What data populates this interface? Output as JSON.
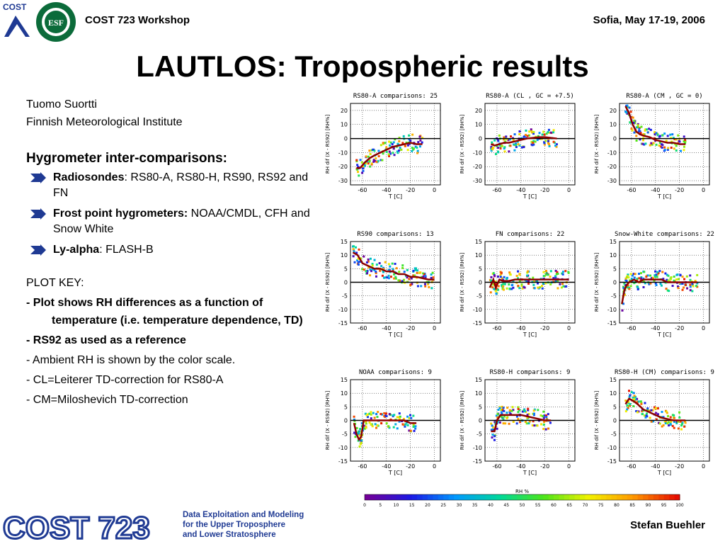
{
  "header": {
    "left": "COST 723 Workshop",
    "right": "Sofia, May 17-19, 2006",
    "logo_left_text": "COST",
    "logo_right_text": "ESF"
  },
  "title": "LAUTLOS: Tropospheric results",
  "left_panel": {
    "author": "Tuomo Suortti",
    "institute": "Finnish Meteorological Institute",
    "section_title": "Hygrometer inter-comparisons:",
    "bullets": [
      {
        "bold": "Radiosondes",
        "rest": ": RS80-A, RS80-H, RS90, RS92 and FN"
      },
      {
        "bold": "Frost point hygrometers:",
        "rest": " NOAA/CMDL, CFH and Snow White"
      },
      {
        "bold": "Ly-alpha",
        "rest": ": FLASH-B"
      }
    ],
    "plot_key_title": "PLOT KEY:",
    "key_lines": [
      {
        "text": "- Plot shows RH differences as a function of temperature (i.e. temperature dependence, TD)",
        "bold": true
      },
      {
        "text": "- RS92 as used as a reference",
        "bold": true
      },
      {
        "text": "- Ambient RH is shown by the color scale.",
        "bold": false
      },
      {
        "text": "- CL=Leiterer TD-correction for RS80-A",
        "bold": false
      },
      {
        "text": "- CM=Miloshevich TD-correction",
        "bold": false
      }
    ]
  },
  "footer": {
    "logo_text": "COST 723",
    "lines": [
      "Data Exploitation and Modeling",
      "for the Upper Troposphere",
      "and Lower Stratosphere"
    ],
    "right": "Stefan Buehler"
  },
  "colors": {
    "title": "#000000",
    "footer_blue": "#1f3a93",
    "mean_curve": "#8b0000",
    "zero_line": "#000000"
  },
  "chart_data": [
    {
      "type": "scatter",
      "title": "RS80-A  comparisons: 25",
      "xlabel": "T [C]",
      "ylabel": "RH dif (X - RS92) [RH%]",
      "xlim": [
        -70,
        5
      ],
      "ylim": [
        -33,
        25
      ],
      "xticks": [
        -60,
        -40,
        -20,
        0
      ],
      "yticks": [
        -30,
        -20,
        -10,
        0,
        10,
        20
      ],
      "mean": {
        "x": [
          -65,
          -62,
          -58,
          -54,
          -50,
          -45,
          -40,
          -35,
          -30,
          -25,
          -20,
          -15,
          -10
        ],
        "y": [
          -21,
          -21,
          -17,
          -14,
          -12,
          -10,
          -8,
          -6,
          -5,
          -4,
          -3,
          -4,
          -4
        ]
      }
    },
    {
      "type": "scatter",
      "title": "RS80-A (CL , GC = +7.5)",
      "xlabel": "T [C]",
      "ylabel": "RH dif (X - RS92) [RH%]",
      "xlim": [
        -70,
        5
      ],
      "ylim": [
        -33,
        25
      ],
      "xticks": [
        -60,
        -40,
        -20,
        0
      ],
      "yticks": [
        -30,
        -20,
        -10,
        0,
        10,
        20
      ],
      "mean": {
        "x": [
          -65,
          -62,
          -58,
          -54,
          -50,
          -45,
          -40,
          -35,
          -30,
          -25,
          -20,
          -15,
          -10
        ],
        "y": [
          -4,
          -5,
          -4,
          -3,
          -3,
          -2,
          -1,
          0,
          0.5,
          1,
          1,
          0.5,
          0
        ]
      }
    },
    {
      "type": "scatter",
      "title": "RS80-A (CM , GC =  0)",
      "xlabel": "T [C]",
      "ylabel": "RH dif (X - RS92) [RH%]",
      "xlim": [
        -70,
        5
      ],
      "ylim": [
        -33,
        25
      ],
      "xticks": [
        -60,
        -40,
        -20,
        0
      ],
      "yticks": [
        -30,
        -20,
        -10,
        0,
        10,
        20
      ],
      "mean": {
        "x": [
          -65,
          -62,
          -59,
          -56,
          -53,
          -50,
          -45,
          -40,
          -35,
          -30,
          -25,
          -20,
          -15
        ],
        "y": [
          23,
          18,
          10,
          5,
          3,
          2,
          1,
          -1,
          -2,
          -3,
          -3,
          -4,
          -4
        ]
      }
    },
    {
      "type": "scatter",
      "title": "RS90  comparisons: 13",
      "xlabel": "T [C]",
      "ylabel": "RH dif (X - RS92) [RH%]",
      "xlim": [
        -70,
        5
      ],
      "ylim": [
        -15,
        15
      ],
      "xticks": [
        -60,
        -40,
        -20,
        0
      ],
      "yticks": [
        -15,
        -10,
        -5,
        0,
        5,
        10,
        15
      ],
      "mean": {
        "x": [
          -68,
          -64,
          -60,
          -55,
          -50,
          -45,
          -40,
          -35,
          -30,
          -25,
          -20,
          -15,
          -10,
          -5,
          0
        ],
        "y": [
          11,
          10,
          7,
          6,
          5,
          5,
          4,
          4,
          3,
          3,
          2,
          2,
          1.5,
          1,
          1
        ]
      }
    },
    {
      "type": "scatter",
      "title": "FN comparisons: 22",
      "xlabel": "T [C]",
      "ylabel": "RH dif (X - RS92) [RH%]",
      "xlim": [
        -70,
        5
      ],
      "ylim": [
        -15,
        15
      ],
      "xticks": [
        -60,
        -40,
        -20,
        0
      ],
      "yticks": [
        -15,
        -10,
        -5,
        0,
        5,
        10,
        15
      ],
      "mean": {
        "x": [
          -66,
          -63,
          -61,
          -58,
          -55,
          -50,
          -45,
          -40,
          -35,
          -30,
          -25,
          -20,
          -15,
          -10,
          -5,
          0
        ],
        "y": [
          -2,
          1,
          -2,
          1,
          0.5,
          0.5,
          1,
          1,
          1,
          1,
          1,
          1,
          1,
          1,
          1,
          1
        ]
      }
    },
    {
      "type": "scatter",
      "title": "Snow-White  comparisons: 22",
      "xlabel": "T [C]",
      "ylabel": "RH dif (X - RS92) [RH%]",
      "xlim": [
        -70,
        5
      ],
      "ylim": [
        -15,
        15
      ],
      "xticks": [
        -60,
        -40,
        -20,
        0
      ],
      "yticks": [
        -15,
        -10,
        -5,
        0,
        5,
        10,
        15
      ],
      "mean": {
        "x": [
          -68,
          -66,
          -64,
          -62,
          -58,
          -54,
          -50,
          -45,
          -40,
          -35,
          -30,
          -25,
          -20,
          -15,
          -10,
          -5
        ],
        "y": [
          -8,
          -3,
          -1,
          0,
          1,
          0,
          1,
          1,
          1,
          1,
          0,
          0,
          0,
          0,
          0,
          0
        ]
      }
    },
    {
      "type": "scatter",
      "title": "NOAA   comparisons:  9",
      "xlabel": "T [C]",
      "ylabel": "RH dif (X - RS92) [RH%]",
      "xlim": [
        -70,
        5
      ],
      "ylim": [
        -15,
        15
      ],
      "xticks": [
        -60,
        -40,
        -20,
        0
      ],
      "yticks": [
        -15,
        -10,
        -5,
        0,
        5,
        10,
        15
      ],
      "mean": {
        "x": [
          -67,
          -65,
          -63,
          -61,
          -59,
          -55,
          -50,
          -45,
          -40,
          -35,
          -30,
          -25,
          -20,
          -15
        ],
        "y": [
          -1,
          -5,
          -7,
          -6,
          0,
          0,
          0,
          0,
          0,
          0,
          0,
          0,
          -1,
          -1
        ]
      }
    },
    {
      "type": "scatter",
      "title": "RS80-H   comparisons:  9",
      "xlabel": "T [C]",
      "ylabel": "RH dif (X - RS92) [RH%]",
      "xlim": [
        -70,
        5
      ],
      "ylim": [
        -15,
        15
      ],
      "xticks": [
        -60,
        -40,
        -20,
        0
      ],
      "yticks": [
        -15,
        -10,
        -5,
        0,
        5,
        10,
        15
      ],
      "mean": {
        "x": [
          -65,
          -62,
          -60,
          -57,
          -55,
          -50,
          -45,
          -40,
          -35,
          -30,
          -25,
          -20,
          -15
        ],
        "y": [
          -4,
          -4,
          0,
          2,
          2,
          2,
          2,
          2,
          1.5,
          1,
          0.5,
          0,
          0
        ]
      }
    },
    {
      "type": "scatter",
      "title": "RS80-H (CM)   comparisons:  9",
      "xlabel": "T [C]",
      "ylabel": "RH dif (X - RS92) [RH%]",
      "xlim": [
        -70,
        5
      ],
      "ylim": [
        -15,
        15
      ],
      "xticks": [
        -60,
        -40,
        -20,
        0
      ],
      "yticks": [
        -15,
        -10,
        -5,
        0,
        5,
        10,
        15
      ],
      "mean": {
        "x": [
          -65,
          -62,
          -58,
          -55,
          -50,
          -45,
          -40,
          -35,
          -30,
          -25,
          -20,
          -15
        ],
        "y": [
          6,
          8,
          7,
          6,
          4,
          3,
          2,
          1,
          0.5,
          0,
          0,
          0
        ]
      }
    }
  ],
  "colorbar": {
    "label": "RH %",
    "ticks": [
      "0",
      "5",
      "10",
      "15",
      "20",
      "25",
      "30",
      "35",
      "40",
      "45",
      "50",
      "55",
      "60",
      "65",
      "70",
      "75",
      "80",
      "85",
      "90",
      "95",
      "100"
    ]
  }
}
